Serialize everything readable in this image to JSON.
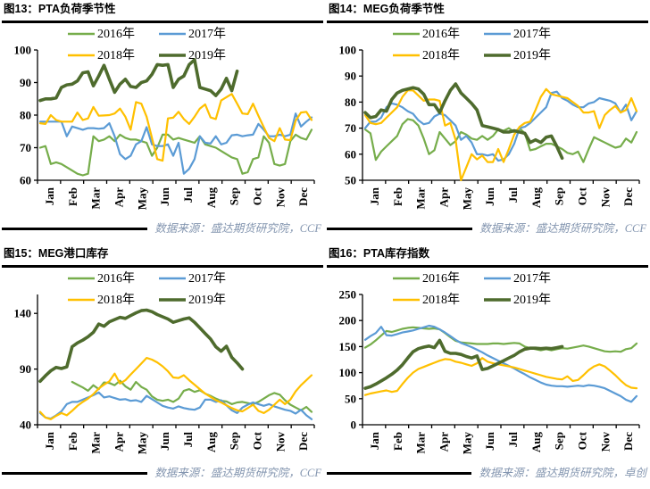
{
  "styles": {
    "source_text_color": "#8496B0",
    "axis_color": "#000000",
    "title_underline_color": "#000000"
  },
  "chart_data": [
    {
      "id": "fig13",
      "type": "line",
      "title": "图13：PTA负荷季节性",
      "source": "数据来源：盛达期货研究院，CCF",
      "x_categories": [
        "Jan",
        "Feb",
        "Mar",
        "Apr",
        "May",
        "Jun",
        "Jul",
        "Aug",
        "Sep",
        "Oct",
        "Nov",
        "Dec"
      ],
      "ylim": [
        60,
        100
      ],
      "yticks": [
        60,
        70,
        80,
        90,
        100
      ],
      "legend_position": "top-center",
      "grid": false,
      "series": [
        {
          "name": "2016年",
          "color": "#76AD4B",
          "width": 2.2,
          "values": [
            70,
            70.5,
            65,
            65.5,
            65,
            64,
            63,
            62,
            61.5,
            62,
            73.5,
            72,
            72.5,
            73.5,
            72,
            74,
            73,
            72.5,
            72.5,
            72,
            71.5,
            67.5,
            70,
            74,
            74,
            72.5,
            73,
            72.5,
            72,
            71.5,
            73.5,
            71,
            70.5,
            70,
            69,
            68,
            67,
            66.5,
            62,
            62.5,
            66.5,
            67,
            73.5,
            71.5,
            65,
            64.5,
            65,
            72,
            74,
            73,
            72.5,
            75.5
          ]
        },
        {
          "name": "2017年",
          "color": "#5B9BD5",
          "width": 2.2,
          "values": [
            78,
            78,
            78,
            78,
            78,
            73.5,
            76.5,
            76,
            75.5,
            76,
            76,
            75.8,
            76,
            77.5,
            73.5,
            68,
            66.5,
            67.5,
            71,
            72,
            76.3,
            71,
            70.5,
            70.5,
            71,
            67.5,
            71.5,
            62,
            63.5,
            66.5,
            73.5,
            71.5,
            71.3,
            73.5,
            71,
            71.5,
            73.8,
            74,
            73.5,
            73.8,
            74,
            77.3,
            75.5,
            73.5,
            73.5,
            74,
            73.5,
            74,
            80.5,
            76.5,
            78,
            79.3
          ]
        },
        {
          "name": "2018年",
          "color": "#FFC000",
          "width": 2.2,
          "values": [
            77.5,
            77.3,
            80,
            78.5,
            78,
            78,
            78,
            80.8,
            78.5,
            79,
            82.5,
            79.8,
            79.9,
            80,
            80.5,
            82,
            79.5,
            75.5,
            84,
            83.5,
            79.5,
            73,
            66.5,
            66,
            79,
            79.2,
            81,
            78.8,
            77.3,
            79.5,
            82,
            83.3,
            79.3,
            78.8,
            84.5,
            85.5,
            86.5,
            83.5,
            80.5,
            80.3,
            83.5,
            79.8,
            76.3,
            73,
            72,
            76,
            72.5,
            72.3,
            78.3,
            80.8,
            81,
            78.5
          ]
        },
        {
          "name": "2019年",
          "color": "#4E6B2D",
          "width": 3.6,
          "values": [
            84.5,
            85,
            85,
            85.3,
            88.5,
            89.3,
            89.5,
            90.5,
            93,
            93.3,
            89,
            92,
            95.3,
            91,
            87,
            89.5,
            91,
            88.8,
            88.5,
            90,
            90.5,
            92.5,
            95.5,
            95.3,
            95.5,
            88.5,
            91,
            92,
            95.5,
            97,
            88.5,
            88,
            87.5,
            86,
            88,
            91.3,
            87.5,
            93.5
          ]
        }
      ]
    },
    {
      "id": "fig14",
      "type": "line",
      "title": "图14：MEG负荷季节性",
      "source": "数据来源：盛达期货研究院，CCF",
      "x_categories": [
        "Jan",
        "Feb",
        "Mar",
        "Apr",
        "May",
        "Jun",
        "Jul",
        "Aug",
        "Sep",
        "Oct",
        "Nov",
        "Dec"
      ],
      "ylim": [
        50,
        100
      ],
      "yticks": [
        50,
        60,
        70,
        80,
        90,
        100
      ],
      "legend_position": "top-center",
      "grid": false,
      "series": [
        {
          "name": "2016年",
          "color": "#76AD4B",
          "width": 2.2,
          "values": [
            69.5,
            68,
            57.8,
            61,
            63,
            65,
            67,
            71.5,
            73.5,
            73,
            71,
            66,
            60,
            61.5,
            68.5,
            66,
            63.5,
            65,
            68.5,
            67.5,
            66,
            65.5,
            67,
            65.5,
            67,
            69.5,
            69,
            70,
            68.5,
            70,
            68,
            61.5,
            62,
            63,
            64,
            64,
            63,
            62,
            60.5,
            60,
            61,
            57,
            62,
            66.5,
            65.5,
            64.5,
            63.5,
            62.5,
            63,
            66,
            64.5,
            68.5
          ]
        },
        {
          "name": "2017年",
          "color": "#5B9BD5",
          "width": 2.2,
          "values": [
            70,
            72.5,
            72.5,
            74,
            78,
            79.5,
            79,
            78,
            76.5,
            75.5,
            73,
            71.5,
            72,
            74.5,
            75.5,
            75,
            73,
            71,
            65.5,
            67,
            64.5,
            60,
            60,
            59.5,
            60,
            57.5,
            58,
            60,
            64,
            70,
            70.5,
            72,
            74,
            76,
            78,
            83.5,
            84,
            81.5,
            80.5,
            79,
            78,
            78,
            79.5,
            80,
            81.5,
            81,
            80.5,
            79.5,
            76,
            79,
            73,
            76.5
          ]
        },
        {
          "name": "2018年",
          "color": "#FFC000",
          "width": 2.2,
          "values": [
            75,
            72,
            71.5,
            72,
            74,
            76,
            78,
            82,
            84.5,
            84.5,
            82.5,
            80.5,
            81,
            81,
            80.5,
            71,
            72,
            65.5,
            50,
            55,
            60,
            58,
            59.5,
            57,
            57,
            62,
            57,
            62,
            67.5,
            70.5,
            72,
            72.5,
            77,
            82,
            85,
            83,
            82.5,
            82,
            81.5,
            80,
            78.5,
            76,
            76,
            76.5,
            70,
            75,
            77,
            78.5,
            76,
            77,
            81.5,
            76.5
          ]
        },
        {
          "name": "2019年",
          "color": "#4E6B2D",
          "width": 3.6,
          "values": [
            76,
            74,
            74.5,
            77,
            76.5,
            81,
            83.5,
            84.5,
            85,
            85.5,
            85,
            83,
            79,
            79,
            76,
            80.5,
            84.5,
            87,
            83.5,
            81.5,
            79.5,
            77,
            71,
            70.5,
            70,
            69.5,
            68.5,
            68.5,
            69,
            68.5,
            68,
            64.5,
            65.5,
            64.5,
            66.5,
            67,
            63,
            58.5
          ]
        }
      ]
    },
    {
      "id": "fig15",
      "type": "line",
      "title": "图15：MEG港口库存",
      "source": "数据来源：盛达期货研究院，CCF",
      "x_categories": [
        "Jan",
        "Feb",
        "Mar",
        "Apr",
        "May",
        "Jun",
        "Jul",
        "Aug",
        "Sep",
        "Oct",
        "Nov",
        "Dec"
      ],
      "ylim": [
        40,
        157
      ],
      "yticks": [
        40,
        90,
        140
      ],
      "legend_position": "top-center",
      "grid": false,
      "series": [
        {
          "name": "2016年",
          "color": "#76AD4B",
          "width": 2.2,
          "start": 6,
          "values": [
            78.5,
            76,
            73.5,
            70.5,
            75.5,
            72,
            78,
            77.5,
            75.5,
            79.5,
            74.5,
            71.5,
            78.5,
            74,
            71.5,
            65.5,
            62.5,
            61.5,
            62.5,
            60.5,
            63.5,
            70.5,
            72,
            69.5,
            71,
            68,
            66,
            63.5,
            61.5,
            61,
            58.5,
            60,
            60.5,
            59.5,
            58.5,
            60.5,
            63.5,
            66.5,
            68.5,
            67,
            62,
            58,
            55.5,
            53,
            56,
            51.5
          ]
        },
        {
          "name": "2017年",
          "color": "#5B9BD5",
          "width": 2.2,
          "values": [
            50.5,
            46.5,
            45.5,
            48.5,
            52,
            58.5,
            60.5,
            60.5,
            62.5,
            64.5,
            66.5,
            69,
            64.5,
            65.5,
            64,
            62.5,
            63,
            61.5,
            62,
            60.5,
            66,
            63,
            60,
            57,
            55.5,
            54.5,
            56.5,
            55,
            54,
            53.5,
            55.5,
            62.5,
            62.5,
            60.5,
            62,
            57.5,
            53,
            50.5,
            55.5,
            58,
            60,
            58.5,
            57,
            58.5,
            56.5,
            55,
            53.5,
            52.5,
            50,
            53.5,
            48.5,
            45
          ]
        },
        {
          "name": "2018年",
          "color": "#FFC000",
          "width": 2.2,
          "values": [
            51.5,
            46.5,
            45,
            48,
            50.5,
            48.5,
            52.5,
            57,
            60.5,
            63.5,
            67.5,
            72.5,
            76,
            79,
            86,
            77,
            80,
            85,
            90,
            95,
            100,
            98.5,
            96,
            92.5,
            88,
            82.5,
            82,
            84.5,
            80,
            76,
            72,
            68,
            65,
            62,
            60,
            57.5,
            55,
            53,
            52,
            55,
            58,
            52.5,
            50.5,
            53.5,
            58,
            62.5,
            58.5,
            62.5,
            70,
            75.5,
            80,
            84.5
          ]
        },
        {
          "name": "2019年",
          "color": "#4E6B2D",
          "width": 3.6,
          "values": [
            79,
            84,
            88.5,
            91.5,
            90.5,
            92,
            110,
            113.5,
            116,
            119,
            123,
            130.5,
            128.5,
            132.5,
            134.5,
            136.5,
            135.5,
            138,
            140.5,
            142.5,
            143,
            141.5,
            139,
            137,
            135,
            132,
            133.5,
            135,
            136,
            132,
            127,
            122,
            117,
            110,
            106,
            110.5,
            100.5,
            95.5,
            90
          ]
        }
      ]
    },
    {
      "id": "fig16",
      "type": "line",
      "title": "图16：PTA库存指数",
      "source": "数据来源：盛达期货研究院，卓创",
      "x_categories": [
        "Jan",
        "Feb",
        "Mar",
        "Apr",
        "May",
        "Jun",
        "Jul",
        "Aug",
        "Sep",
        "Oct",
        "Nov",
        "Dec"
      ],
      "ylim": [
        0,
        250
      ],
      "yticks": [
        0,
        50,
        100,
        150,
        200,
        250
      ],
      "legend_position": "top-center",
      "grid": false,
      "series": [
        {
          "name": "2016年",
          "color": "#76AD4B",
          "width": 2.2,
          "values": [
            148,
            154,
            162,
            171,
            180,
            178,
            181,
            184,
            186,
            187,
            186,
            185,
            184,
            185,
            183,
            176,
            168,
            161,
            158,
            157,
            156,
            155,
            155,
            155,
            156,
            156,
            155,
            156,
            157,
            156,
            150,
            147,
            145,
            143,
            145,
            143,
            145,
            147,
            146,
            148,
            150,
            152,
            150,
            147,
            144,
            141,
            140,
            141,
            140,
            145,
            147,
            156
          ]
        },
        {
          "name": "2017年",
          "color": "#5B9BD5",
          "width": 2.2,
          "values": [
            163,
            170,
            176,
            188,
            172,
            171,
            174,
            177,
            179,
            181,
            184,
            187,
            190,
            188,
            183,
            177,
            170,
            163,
            157,
            153,
            149,
            144,
            139,
            133,
            128,
            123,
            118,
            113,
            108,
            102,
            97,
            91,
            86,
            81,
            77,
            75,
            74,
            74,
            73,
            74,
            75,
            74,
            76,
            75,
            73,
            70,
            65,
            60,
            55,
            48,
            44,
            55
          ]
        },
        {
          "name": "2018年",
          "color": "#FFC000",
          "width": 2.2,
          "values": [
            57,
            60,
            62,
            64,
            66,
            63,
            65,
            78,
            90,
            100,
            107,
            111,
            115,
            119,
            123,
            126,
            125,
            121,
            119,
            116,
            113,
            118,
            128,
            121,
            118,
            116,
            114,
            112,
            110,
            107,
            104,
            101,
            98,
            95,
            92,
            90,
            88,
            87,
            93,
            84,
            86,
            95,
            105,
            112,
            116,
            112,
            104,
            95,
            85,
            76,
            71,
            70
          ]
        },
        {
          "name": "2019年",
          "color": "#4E6B2D",
          "width": 3.6,
          "values": [
            70,
            73,
            78,
            84,
            90,
            97,
            105,
            115,
            128,
            140,
            146,
            149,
            151,
            148,
            162,
            141,
            137,
            137,
            135,
            131,
            128,
            132,
            106,
            108,
            113,
            118,
            123,
            128,
            133,
            140,
            145,
            147,
            147,
            146,
            147,
            146,
            148,
            150
          ]
        }
      ]
    }
  ]
}
